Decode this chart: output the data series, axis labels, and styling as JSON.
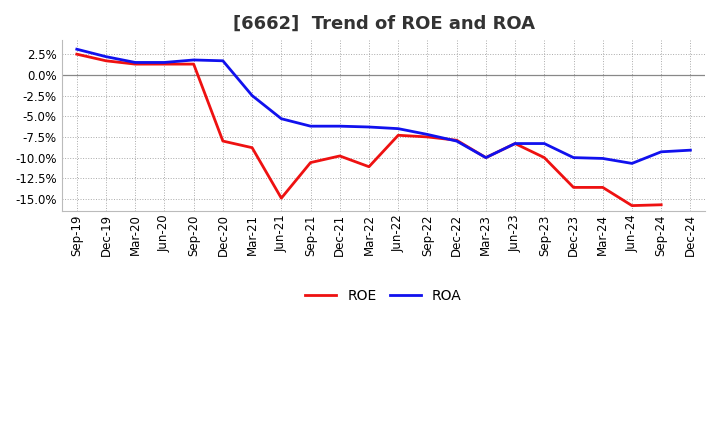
{
  "title": "[6662]  Trend of ROE and ROA",
  "labels": [
    "Sep-19",
    "Dec-19",
    "Mar-20",
    "Jun-20",
    "Sep-20",
    "Dec-20",
    "Mar-21",
    "Jun-21",
    "Sep-21",
    "Dec-21",
    "Mar-22",
    "Jun-22",
    "Sep-22",
    "Dec-22",
    "Mar-23",
    "Jun-23",
    "Sep-23",
    "Dec-23",
    "Mar-24",
    "Jun-24",
    "Sep-24",
    "Dec-24"
  ],
  "ROE": [
    2.5,
    1.7,
    1.3,
    1.3,
    1.3,
    -8.0,
    -8.8,
    -14.9,
    -10.6,
    -9.8,
    -11.1,
    -7.3,
    -7.5,
    -7.9,
    -10.0,
    -8.3,
    -10.0,
    -13.6,
    -13.6,
    -15.8,
    -15.7,
    null
  ],
  "ROA": [
    3.1,
    2.2,
    1.5,
    1.5,
    1.8,
    1.7,
    -2.5,
    -5.3,
    -6.2,
    -6.2,
    -6.3,
    -6.5,
    -7.2,
    -8.0,
    -10.0,
    -8.3,
    -8.3,
    -10.0,
    -10.1,
    -10.7,
    -9.3,
    -9.1
  ],
  "roe_color": "#ee1111",
  "roa_color": "#1111ee",
  "bg_color": "#ffffff",
  "plot_bg_color": "#ffffff",
  "grid_color": "#aaaaaa",
  "ylim": [
    -16.5,
    4.2
  ],
  "yticks": [
    2.5,
    0.0,
    -2.5,
    -5.0,
    -7.5,
    -10.0,
    -12.5,
    -15.0
  ],
  "linewidth": 2.0,
  "title_fontsize": 13,
  "tick_fontsize": 8.5,
  "legend_fontsize": 10
}
